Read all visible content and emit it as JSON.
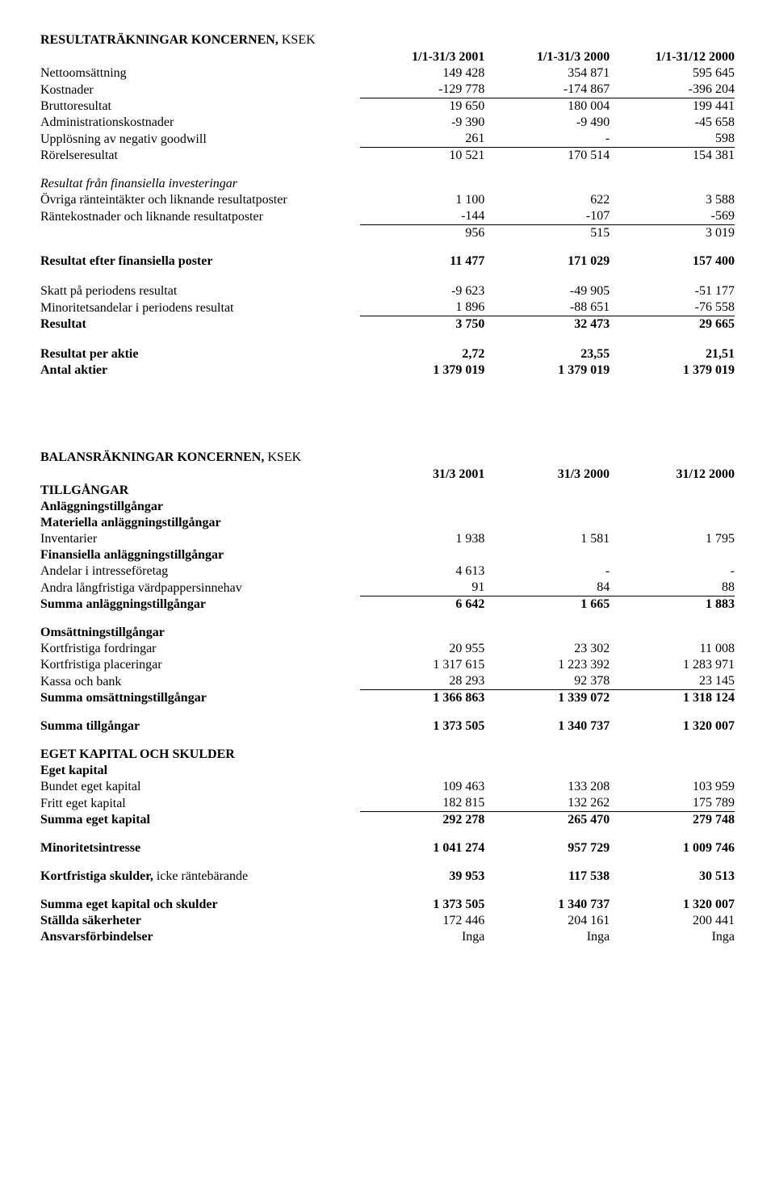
{
  "income": {
    "title": "RESULTATRÄKNINGAR KONCERNEN,",
    "title_suffix": "KSEK",
    "cols": [
      "1/1-31/3 2001",
      "1/1-31/3 2000",
      "1/1-31/12 2000"
    ],
    "rows": [
      {
        "label": "Nettoomsättning",
        "v": [
          "149 428",
          "354 871",
          "595 645"
        ]
      },
      {
        "label": "Kostnader",
        "v": [
          "-129 778",
          "-174 867",
          "-396 204"
        ],
        "underline": true
      },
      {
        "label": "Bruttoresultat",
        "v": [
          "19 650",
          "180 004",
          "199 441"
        ]
      },
      {
        "label": "Administrationskostnader",
        "v": [
          "-9 390",
          "-9 490",
          "-45 658"
        ]
      },
      {
        "label": "Upplösning av negativ goodwill",
        "v": [
          "261",
          "-",
          "598"
        ],
        "underline": true
      },
      {
        "label": "Rörelseresultat",
        "v": [
          "10 521",
          "170 514",
          "154 381"
        ]
      }
    ],
    "fin_heading": "Resultat från finansiella investeringar",
    "fin_rows": [
      {
        "label": "Övriga ränteintäkter och liknande resultatposter",
        "v": [
          "1 100",
          "622",
          "3 588"
        ]
      },
      {
        "label": "Räntekostnader och liknande resultatposter",
        "v": [
          "-144",
          "-107",
          "-569"
        ],
        "underline": true
      },
      {
        "label": "",
        "v": [
          "956",
          "515",
          "3 019"
        ]
      }
    ],
    "after_fin": {
      "label": "Resultat efter finansiella poster",
      "v": [
        "11 477",
        "171 029",
        "157 400"
      ]
    },
    "tax_rows": [
      {
        "label": "Skatt på periodens resultat",
        "v": [
          "-9 623",
          "-49 905",
          "-51 177"
        ]
      },
      {
        "label": "Minoritetsandelar i periodens resultat",
        "v": [
          "1 896",
          "-88 651",
          "-76 558"
        ],
        "underline": true
      }
    ],
    "result": {
      "label": "Resultat",
      "v": [
        "3 750",
        "32 473",
        "29 665"
      ]
    },
    "per_share": [
      {
        "label": "Resultat per aktie",
        "v": [
          "2,72",
          "23,55",
          "21,51"
        ],
        "bold": true
      },
      {
        "label": "Antal aktier",
        "v": [
          "1 379 019",
          "1 379 019",
          "1 379 019"
        ],
        "bold": true
      }
    ]
  },
  "balance": {
    "title": "BALANSRÄKNINGAR KONCERNEN,",
    "title_suffix": "KSEK",
    "cols": [
      "31/3 2001",
      "31/3 2000",
      "31/12 2000"
    ],
    "assets_heading": "TILLGÅNGAR",
    "fixed_heading": "Anläggningstillgångar",
    "tangible_heading": "Materiella anläggningstillgångar",
    "tangible_rows": [
      {
        "label": "Inventarier",
        "v": [
          "1 938",
          "1 581",
          "1 795"
        ]
      }
    ],
    "financial_heading": "Finansiella anläggningstillgångar",
    "financial_rows": [
      {
        "label": "Andelar i intresseföretag",
        "v": [
          "4 613",
          "-",
          "-"
        ]
      },
      {
        "label": "Andra långfristiga värdpappersinnehav",
        "v": [
          "91",
          "84",
          "88"
        ],
        "underline": true
      }
    ],
    "sum_fixed": {
      "label": "Summa anläggningstillgångar",
      "v": [
        "6 642",
        "1 665",
        "1 883"
      ]
    },
    "current_heading": "Omsättningstillgångar",
    "current_rows": [
      {
        "label": "Kortfristiga fordringar",
        "v": [
          "20 955",
          "23 302",
          "11 008"
        ]
      },
      {
        "label": "Kortfristiga placeringar",
        "v": [
          "1 317 615",
          "1 223 392",
          "1 283 971"
        ]
      },
      {
        "label": "Kassa och bank",
        "v": [
          "28 293",
          "92 378",
          "23 145"
        ],
        "underline": true
      }
    ],
    "sum_current": {
      "label": "Summa omsättningstillgångar",
      "v": [
        "1 366 863",
        "1 339 072",
        "1 318 124"
      ]
    },
    "sum_assets": {
      "label": "Summa tillgångar",
      "v": [
        "1 373 505",
        "1 340 737",
        "1 320 007"
      ]
    },
    "equity_heading": "EGET KAPITAL OCH SKULDER",
    "equity_sub": "Eget kapital",
    "equity_rows": [
      {
        "label": "Bundet eget kapital",
        "v": [
          "109 463",
          "133 208",
          "103 959"
        ]
      },
      {
        "label": "Fritt eget kapital",
        "v": [
          "182 815",
          "132 262",
          "175 789"
        ],
        "underline": true
      }
    ],
    "sum_equity": {
      "label": "Summa eget kapital",
      "v": [
        "292 278",
        "265 470",
        "279 748"
      ]
    },
    "minority": {
      "label": "Minoritetsintresse",
      "v": [
        "1 041 274",
        "957 729",
        "1 009 746"
      ]
    },
    "short_liab": {
      "label": "Kortfristiga skulder,",
      "suffix": "icke räntebärande",
      "v": [
        "39 953",
        "117 538",
        "30 513"
      ]
    },
    "sum_eq_liab": {
      "label": "Summa eget kapital och skulder",
      "v": [
        "1 373 505",
        "1 340 737",
        "1 320 007"
      ]
    },
    "pledged": {
      "label": "Ställda säkerheter",
      "v": [
        "172 446",
        "204 161",
        "200 441"
      ]
    },
    "contingent": {
      "label": "Ansvarsförbindelser",
      "v": [
        "Inga",
        "Inga",
        "Inga"
      ]
    }
  }
}
